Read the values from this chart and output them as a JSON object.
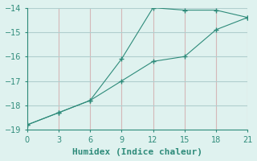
{
  "xlabel": "Humidex (Indice chaleur)",
  "line1_x": [
    0,
    3,
    6,
    9,
    12,
    15,
    18,
    21
  ],
  "line1_y": [
    -18.8,
    -18.3,
    -17.8,
    -16.1,
    -14.0,
    -14.1,
    -14.1,
    -14.4
  ],
  "line2_x": [
    0,
    3,
    6,
    9,
    12,
    15,
    18,
    21
  ],
  "line2_y": [
    -18.8,
    -18.3,
    -17.8,
    -17.0,
    -16.2,
    -16.0,
    -14.9,
    -14.4
  ],
  "line_color": "#2e8b7a",
  "bg_color": "#dff2ef",
  "grid_color_x": "#d4b8b8",
  "grid_color_y": "#b0cece",
  "xlim": [
    0,
    21
  ],
  "ylim": [
    -19,
    -14
  ],
  "xticks": [
    0,
    3,
    6,
    9,
    12,
    15,
    18,
    21
  ],
  "yticks": [
    -19,
    -18,
    -17,
    -16,
    -15,
    -14
  ],
  "marker": "+",
  "markersize": 4,
  "linewidth": 0.8,
  "tick_fontsize": 7,
  "xlabel_fontsize": 8
}
